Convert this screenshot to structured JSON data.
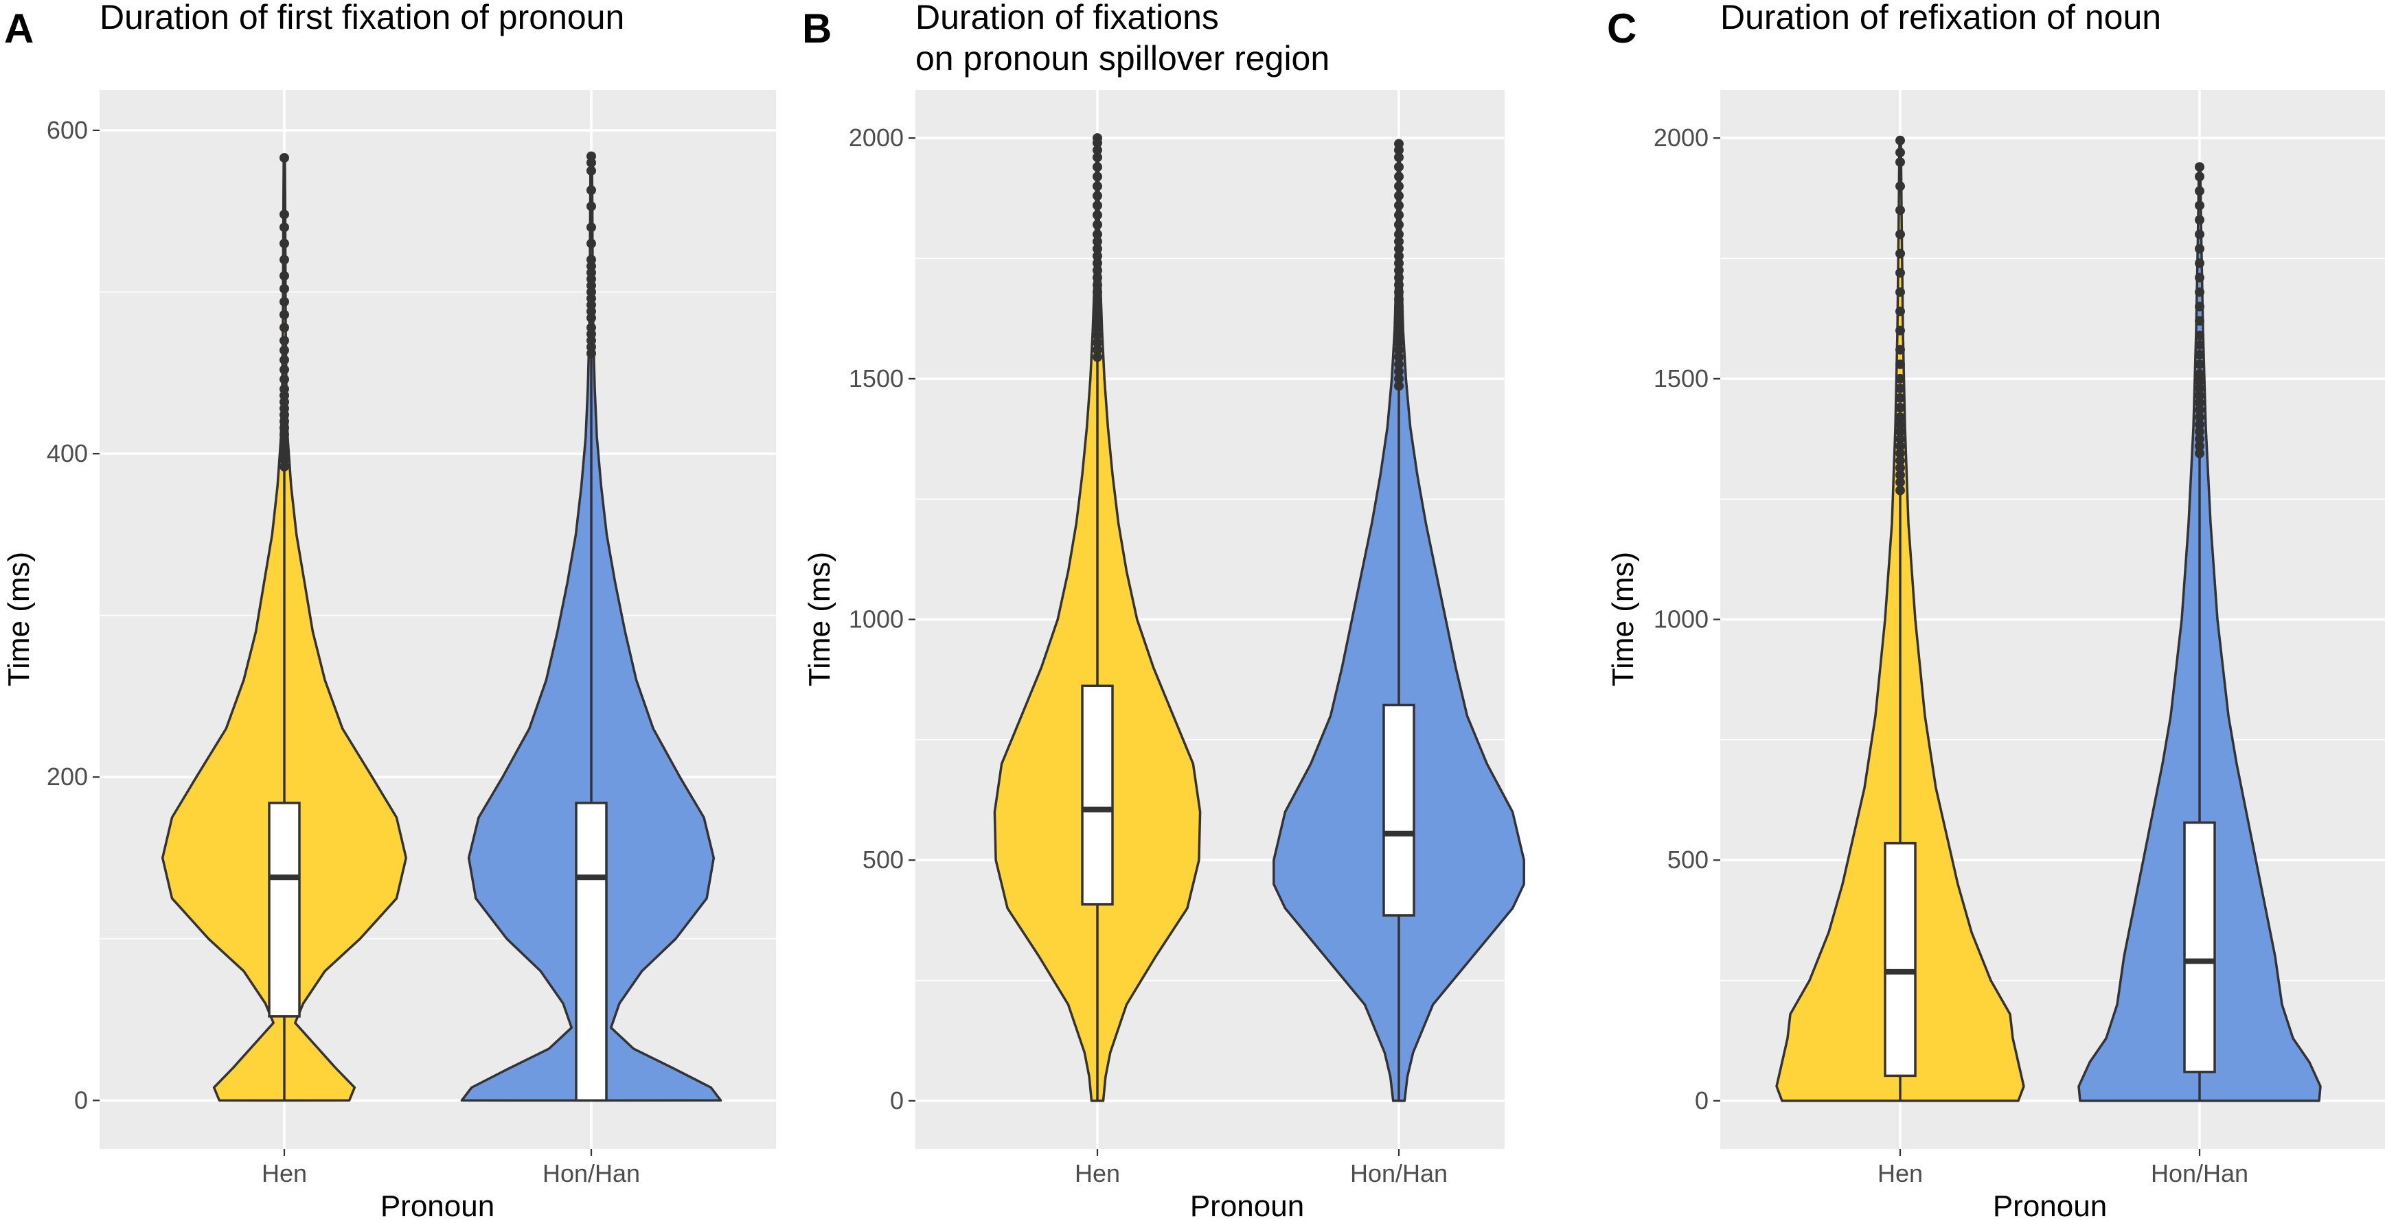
{
  "colors": {
    "Hen": "#FFD43B",
    "Hon/Han": "#6F9AE0",
    "panel_bg": "#EBEBEB",
    "ink": "#333333"
  },
  "chart_data": [
    {
      "panel": "A",
      "type": "violin+box",
      "title": "Duration of first fixation of pronoun",
      "xlabel": "Pronoun",
      "ylabel": "Time (ms)",
      "ylim": [
        -30,
        625
      ],
      "yticks": [
        0,
        200,
        400,
        600
      ],
      "y_tick_labels": [
        "0",
        "200",
        "400",
        "600"
      ],
      "categories": [
        "Hen",
        "Hon/Han"
      ],
      "groups": [
        {
          "name": "Hen",
          "box": {
            "q1": 52,
            "median": 138,
            "q3": 184,
            "whisker_low": 0,
            "whisker_high": 390
          },
          "max": 583,
          "density_profile": [
            [
              0,
              0.48
            ],
            [
              8,
              0.52
            ],
            [
              20,
              0.38
            ],
            [
              35,
              0.22
            ],
            [
              48,
              0.08
            ],
            [
              60,
              0.14
            ],
            [
              80,
              0.3
            ],
            [
              100,
              0.56
            ],
            [
              125,
              0.83
            ],
            [
              150,
              0.9
            ],
            [
              175,
              0.83
            ],
            [
              200,
              0.65
            ],
            [
              230,
              0.43
            ],
            [
              260,
              0.3
            ],
            [
              290,
              0.21
            ],
            [
              320,
              0.15
            ],
            [
              350,
              0.09
            ],
            [
              380,
              0.05
            ],
            [
              410,
              0.025
            ],
            [
              440,
              0.015
            ],
            [
              480,
              0.01
            ],
            [
              520,
              0.008
            ],
            [
              560,
              0.006
            ],
            [
              583,
              0.004
            ]
          ],
          "outliers": [
            392,
            396,
            400,
            404,
            408,
            412,
            416,
            420,
            424,
            428,
            432,
            436,
            440,
            446,
            452,
            458,
            464,
            470,
            478,
            486,
            494,
            502,
            510,
            520,
            530,
            540,
            548,
            583
          ]
        },
        {
          "name": "Hon/Han",
          "box": {
            "q1": 0,
            "median": 138,
            "q3": 184,
            "whisker_low": 0,
            "whisker_high": 460
          },
          "max": 584,
          "density_profile": [
            [
              0,
              0.92
            ],
            [
              8,
              0.85
            ],
            [
              20,
              0.58
            ],
            [
              32,
              0.3
            ],
            [
              45,
              0.14
            ],
            [
              60,
              0.2
            ],
            [
              80,
              0.36
            ],
            [
              100,
              0.6
            ],
            [
              125,
              0.82
            ],
            [
              150,
              0.87
            ],
            [
              175,
              0.8
            ],
            [
              200,
              0.63
            ],
            [
              230,
              0.44
            ],
            [
              260,
              0.32
            ],
            [
              290,
              0.24
            ],
            [
              320,
              0.17
            ],
            [
              350,
              0.11
            ],
            [
              380,
              0.07
            ],
            [
              410,
              0.04
            ],
            [
              440,
              0.025
            ],
            [
              470,
              0.015
            ],
            [
              510,
              0.01
            ],
            [
              550,
              0.008
            ],
            [
              584,
              0.005
            ]
          ],
          "outliers": [
            462,
            466,
            470,
            474,
            478,
            484,
            488,
            492,
            496,
            500,
            504,
            508,
            512,
            516,
            520,
            530,
            540,
            553,
            563,
            575,
            580,
            584
          ]
        }
      ]
    },
    {
      "panel": "B",
      "type": "violin+box",
      "title": "Duration of fixations",
      "title_line2": "on pronoun spillover region",
      "xlabel": "Pronoun",
      "ylabel": "Time (ms)",
      "ylim": [
        -100,
        2100
      ],
      "yticks": [
        0,
        500,
        1000,
        1500,
        2000
      ],
      "y_tick_labels": [
        "0",
        "500",
        "1000",
        "1500",
        "2000"
      ],
      "categories": [
        "Hen",
        "Hon/Han"
      ],
      "groups": [
        {
          "name": "Hen",
          "box": {
            "q1": 408,
            "median": 605,
            "q3": 862,
            "whisker_low": 0,
            "whisker_high": 1540
          },
          "max": 2000,
          "density_profile": [
            [
              0,
              0.05
            ],
            [
              50,
              0.07
            ],
            [
              100,
              0.11
            ],
            [
              200,
              0.25
            ],
            [
              300,
              0.5
            ],
            [
              400,
              0.77
            ],
            [
              500,
              0.87
            ],
            [
              600,
              0.88
            ],
            [
              700,
              0.82
            ],
            [
              800,
              0.65
            ],
            [
              900,
              0.48
            ],
            [
              1000,
              0.34
            ],
            [
              1100,
              0.25
            ],
            [
              1200,
              0.18
            ],
            [
              1300,
              0.13
            ],
            [
              1400,
              0.09
            ],
            [
              1500,
              0.06
            ],
            [
              1600,
              0.04
            ],
            [
              1700,
              0.025
            ],
            [
              1800,
              0.015
            ],
            [
              1900,
              0.01
            ],
            [
              2000,
              0.005
            ]
          ],
          "outliers": [
            1545,
            1560,
            1575,
            1590,
            1605,
            1620,
            1635,
            1650,
            1665,
            1680,
            1695,
            1710,
            1725,
            1740,
            1755,
            1770,
            1785,
            1800,
            1820,
            1840,
            1860,
            1880,
            1900,
            1920,
            1940,
            1960,
            1975,
            1990,
            2000
          ]
        },
        {
          "name": "Hon/Han",
          "box": {
            "q1": 385,
            "median": 555,
            "q3": 822,
            "whisker_low": 0,
            "whisker_high": 1480
          },
          "max": 1988,
          "density_profile": [
            [
              0,
              0.04
            ],
            [
              50,
              0.06
            ],
            [
              100,
              0.1
            ],
            [
              200,
              0.24
            ],
            [
              300,
              0.52
            ],
            [
              400,
              0.8
            ],
            [
              450,
              0.88
            ],
            [
              500,
              0.88
            ],
            [
              600,
              0.8
            ],
            [
              700,
              0.62
            ],
            [
              800,
              0.48
            ],
            [
              900,
              0.4
            ],
            [
              1000,
              0.33
            ],
            [
              1100,
              0.26
            ],
            [
              1200,
              0.19
            ],
            [
              1300,
              0.13
            ],
            [
              1400,
              0.08
            ],
            [
              1500,
              0.05
            ],
            [
              1600,
              0.03
            ],
            [
              1700,
              0.02
            ],
            [
              1800,
              0.013
            ],
            [
              1900,
              0.008
            ],
            [
              1988,
              0.005
            ]
          ],
          "outliers": [
            1485,
            1500,
            1515,
            1530,
            1545,
            1560,
            1575,
            1590,
            1605,
            1620,
            1635,
            1650,
            1665,
            1680,
            1695,
            1710,
            1725,
            1740,
            1755,
            1770,
            1785,
            1800,
            1820,
            1840,
            1860,
            1880,
            1900,
            1920,
            1940,
            1960,
            1975,
            1988
          ]
        }
      ]
    },
    {
      "panel": "C",
      "type": "violin+box",
      "title": "Duration of refixation of noun",
      "xlabel": "Pronoun",
      "ylabel": "Time (ms)",
      "ylim": [
        -100,
        2100
      ],
      "yticks": [
        0,
        500,
        1000,
        1500,
        2000
      ],
      "y_tick_labels": [
        "0",
        "500",
        "1000",
        "1500",
        "2000"
      ],
      "categories": [
        "Hen",
        "Hon/Han"
      ],
      "groups": [
        {
          "name": "Hen",
          "box": {
            "q1": 52,
            "median": 268,
            "q3": 535,
            "whisker_low": 0,
            "whisker_high": 1265
          },
          "max": 1995,
          "density_profile": [
            [
              0,
              0.86
            ],
            [
              30,
              0.9
            ],
            [
              80,
              0.86
            ],
            [
              130,
              0.82
            ],
            [
              180,
              0.8
            ],
            [
              250,
              0.66
            ],
            [
              350,
              0.52
            ],
            [
              450,
              0.42
            ],
            [
              550,
              0.34
            ],
            [
              650,
              0.26
            ],
            [
              800,
              0.18
            ],
            [
              1000,
              0.11
            ],
            [
              1200,
              0.06
            ],
            [
              1400,
              0.035
            ],
            [
              1600,
              0.02
            ],
            [
              1800,
              0.012
            ],
            [
              1995,
              0.005
            ]
          ],
          "outliers": [
            1268,
            1285,
            1300,
            1315,
            1330,
            1345,
            1360,
            1375,
            1390,
            1405,
            1420,
            1440,
            1460,
            1480,
            1500,
            1530,
            1560,
            1600,
            1640,
            1680,
            1720,
            1760,
            1800,
            1850,
            1900,
            1950,
            1970,
            1995
          ]
        },
        {
          "name": "Hon/Han",
          "box": {
            "q1": 60,
            "median": 290,
            "q3": 578,
            "whisker_low": 0,
            "whisker_high": 1340
          },
          "max": 1940,
          "density_profile": [
            [
              0,
              0.87
            ],
            [
              30,
              0.88
            ],
            [
              80,
              0.8
            ],
            [
              130,
              0.68
            ],
            [
              200,
              0.6
            ],
            [
              300,
              0.55
            ],
            [
              400,
              0.48
            ],
            [
              500,
              0.41
            ],
            [
              600,
              0.34
            ],
            [
              700,
              0.27
            ],
            [
              800,
              0.21
            ],
            [
              1000,
              0.13
            ],
            [
              1200,
              0.08
            ],
            [
              1400,
              0.045
            ],
            [
              1600,
              0.025
            ],
            [
              1800,
              0.012
            ],
            [
              1940,
              0.005
            ]
          ],
          "outliers": [
            1345,
            1360,
            1375,
            1390,
            1405,
            1420,
            1435,
            1450,
            1465,
            1480,
            1495,
            1510,
            1530,
            1550,
            1570,
            1590,
            1620,
            1650,
            1680,
            1710,
            1740,
            1770,
            1800,
            1830,
            1860,
            1890,
            1920,
            1940
          ]
        }
      ]
    }
  ]
}
